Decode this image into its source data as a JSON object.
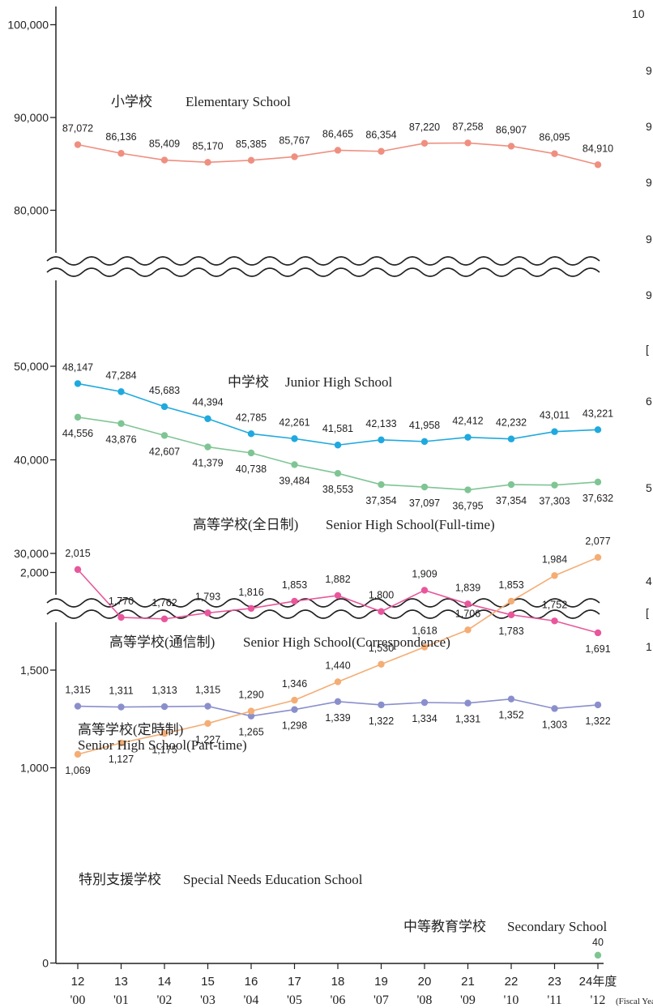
{
  "chart_data": {
    "type": "line",
    "title": "",
    "xlabel": "",
    "ylabel": "",
    "categories": [
      "12",
      "13",
      "14",
      "15",
      "16",
      "17",
      "18",
      "19",
      "20",
      "21",
      "22",
      "23",
      "24年度"
    ],
    "categories_western": [
      "'00",
      "'01",
      "'02",
      "'03",
      "'04",
      "'05",
      "'06",
      "'07",
      "'08",
      "'09",
      "'10",
      "'11",
      "'12"
    ],
    "x_unit_label": "(Fiscal Year)",
    "y_ticks": [
      "100,000",
      "90,000",
      "80,000",
      "50,000",
      "40,000",
      "30,000",
      "2,000",
      "1,500",
      "1,000",
      "0"
    ],
    "axis_break": true,
    "grid": false,
    "legend": "inline labels",
    "series": [
      {
        "name": "小学校 Elementary School",
        "color": "#ef8f80",
        "values": [
          87072,
          86136,
          85409,
          85170,
          85385,
          85767,
          86465,
          86354,
          87220,
          87258,
          86907,
          86095,
          84910
        ],
        "labels": [
          "87,072",
          "86,136",
          "85,409",
          "85,170",
          "85,385",
          "85,767",
          "86,465",
          "86,354",
          "87,220",
          "87,258",
          "86,907",
          "86,095",
          "84,910"
        ]
      },
      {
        "name": "中学校 Junior High School",
        "color": "#1fa9de",
        "values": [
          48147,
          47284,
          45683,
          44394,
          42785,
          42261,
          41581,
          42133,
          41958,
          42412,
          42232,
          43011,
          43221
        ],
        "labels": [
          "48,147",
          "47,284",
          "45,683",
          "44,394",
          "42,785",
          "42,261",
          "41,581",
          "42,133",
          "41,958",
          "42,412",
          "42,232",
          "43,011",
          "43,221"
        ]
      },
      {
        "name": "高等学校(全日制) Senior High School(Full-time)",
        "color": "#7fc594",
        "values": [
          44556,
          43876,
          42607,
          41379,
          40738,
          39484,
          38553,
          37354,
          37097,
          36795,
          37354,
          37303,
          37632
        ],
        "labels": [
          "44,556",
          "43,876",
          "42,607",
          "41,379",
          "40,738",
          "39,484",
          "38,553",
          "37,354",
          "37,097",
          "36,795",
          "37,354",
          "37,303",
          "37,632"
        ]
      },
      {
        "name": "高等学校(通信制) Senior High School(Correspondence)",
        "color": "#e8579b",
        "values": [
          2015,
          1770,
          1762,
          1793,
          1816,
          1853,
          1882,
          1800,
          1909,
          1839,
          1783,
          1752,
          1691
        ],
        "labels": [
          "2,015",
          "1,770",
          "1,762",
          "1,793",
          "1,816",
          "1,853",
          "1,882",
          "1,800",
          "1,909",
          "1,839",
          "1,783",
          "1,752",
          "1,691"
        ]
      },
      {
        "name": "高等学校(定時制) Senior High School(Part-time)",
        "color": "#8a8fcc",
        "values": [
          1315,
          1311,
          1313,
          1315,
          1265,
          1298,
          1339,
          1322,
          1334,
          1331,
          1352,
          1303,
          1322
        ],
        "labels": [
          "1,315",
          "1,311",
          "1,313",
          "1,315",
          "1,265",
          "1,298",
          "1,339",
          "1,322",
          "1,334",
          "1,331",
          "1,352",
          "1,303",
          "1,322"
        ]
      },
      {
        "name": "特別支援学校 Special Needs Education School",
        "color": "#f4ad74",
        "values": [
          1069,
          1127,
          1175,
          1227,
          1290,
          1346,
          1440,
          1530,
          1618,
          1706,
          1853,
          1984,
          2077
        ],
        "labels": [
          "1,069",
          "1,127",
          "1,175",
          "1,227",
          "1,290",
          "1,346",
          "1,440",
          "1,530",
          "1,618",
          "1,706",
          "1,853",
          "1,984",
          "2,077"
        ]
      },
      {
        "name": "中等教育学校 Secondary School",
        "color": "#7fc594",
        "values": [
          null,
          null,
          null,
          null,
          null,
          null,
          null,
          null,
          null,
          null,
          null,
          null,
          40
        ],
        "labels": [
          "",
          "",
          "",
          "",
          "",
          "",
          "",
          "",
          "",
          "",
          "",
          "",
          "40"
        ]
      }
    ],
    "series_labels": {
      "elementary": [
        "小学校",
        "Elementary School"
      ],
      "junior": [
        "中学校",
        "Junior High School"
      ],
      "fulltime": [
        "高等学校(全日制)",
        "Senior High School(Full-time)"
      ],
      "correspondence": [
        "高等学校(通信制)",
        "Senior High School(Correspondence)"
      ],
      "parttime": [
        "高等学校(定時制)",
        "Senior High School(Part-time)"
      ],
      "special": [
        "特別支援学校",
        "Special Needs Education School"
      ],
      "secondary": [
        "中等教育学校",
        "Secondary School"
      ]
    }
  },
  "right_edge_fragments": [
    "10",
    "9",
    "9",
    "9",
    "9",
    "9",
    "[",
    "6",
    "5",
    "4",
    "[",
    "1"
  ]
}
